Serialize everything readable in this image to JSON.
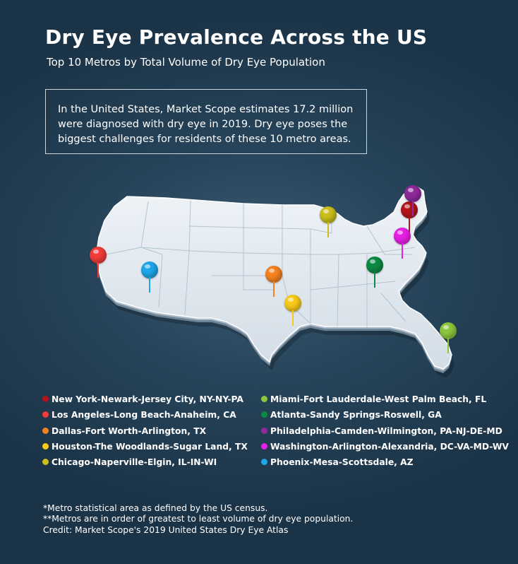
{
  "header": {
    "title": "Dry Eye Prevalence Across the US",
    "subtitle": "Top 10 Metros by Total Volume of Dry Eye Population"
  },
  "intro": {
    "line1": "In the United States, Market Scope estimates 17.2 million",
    "line2": "were diagnosed with dry eye in 2019. Dry eye poses the",
    "line3": "biggest challenges for residents of these 10 metro areas."
  },
  "metros": [
    {
      "label": "New York-Newark-Jersey City, NY-NY-PA",
      "color": "#b3141b"
    },
    {
      "label": "Los Angeles-Long Beach-Anaheim, CA",
      "color": "#f23b3b"
    },
    {
      "label": "Dallas-Fort Worth-Arlington, TX",
      "color": "#f4821f"
    },
    {
      "label": "Houston-The Woodlands-Sugar Land, TX",
      "color": "#f7c91a"
    },
    {
      "label": "Chicago-Naperville-Elgin, IL-IN-WI",
      "color": "#c9be1c"
    },
    {
      "label": "Miami-Fort Lauderdale-West Palm Beach, FL",
      "color": "#8cc63f"
    },
    {
      "label": "Atlanta-Sandy Springs-Roswell, GA",
      "color": "#0b8a43"
    },
    {
      "label": "Philadelphia-Camden-Wilmington, PA-NJ-DE-MD",
      "color": "#8e2a9c"
    },
    {
      "label": "Washington-Arlington-Alexandria, DC-VA-MD-WV",
      "color": "#e61fe6"
    },
    {
      "label": "Phoenix-Mesa-Scottsdale, AZ",
      "color": "#1ea6e8"
    }
  ],
  "map": {
    "land_color": "#dfe7ef",
    "edge_color": "#a9b9c8"
  },
  "footnotes": {
    "line1": "*Metro statistical area as defined by the US census.",
    "line2": "**Metros are in order of greatest to least volume of dry eye population.",
    "line3": "Credit: Market Scope's 2019 United States Dry Eye Atlas"
  }
}
